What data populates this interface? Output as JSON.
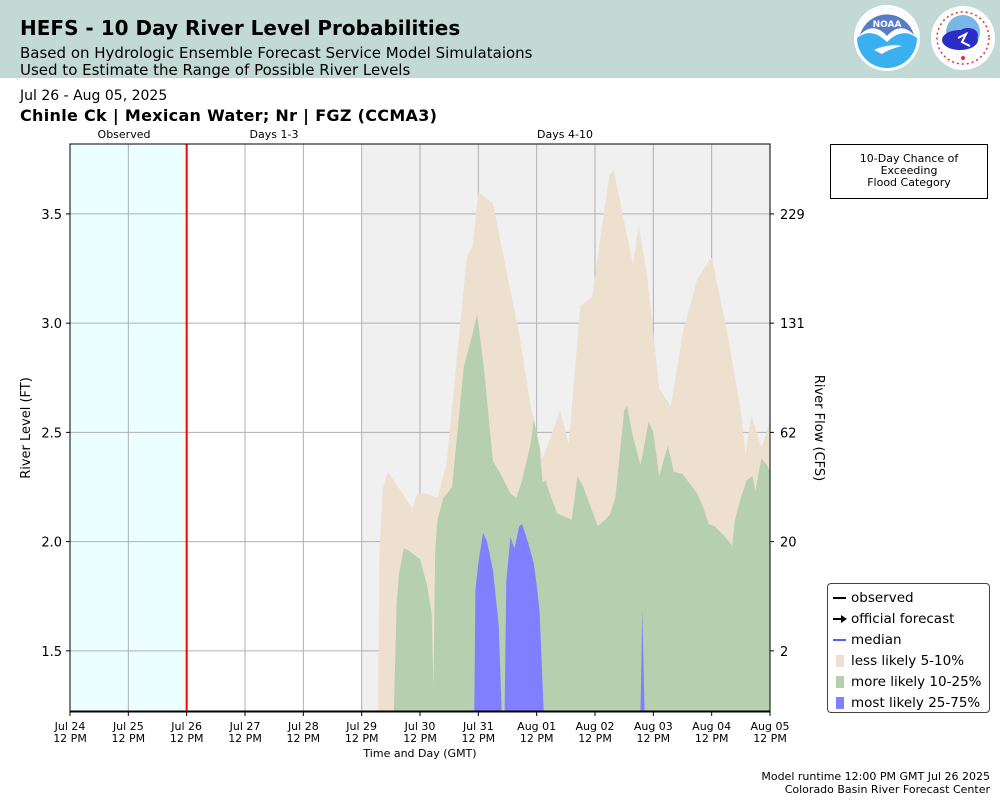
{
  "header": {
    "title": "HEFS - 10 Day River Level Probabilities",
    "subtitle1": "Based on Hydrologic Ensemble Forecast Service Model Simulataions",
    "subtitle2": "Used to Estimate the Range of Possible River Levels",
    "bg_color": "#c3d9d6",
    "logos": [
      "noaa-logo",
      "national-weather-service-logo"
    ]
  },
  "date_range": "Jul 26 - Aug 05, 2025",
  "station": "Chinle Ck | Mexican Water; Nr | FGZ (CCMA3)",
  "periods": [
    "Observed",
    "Days 1-3",
    "Days 4-10"
  ],
  "flood_box": {
    "lines": [
      "10-Day Chance of",
      "Exceeding",
      "Flood Category"
    ]
  },
  "legend": [
    {
      "label": "observed",
      "color": "#000000",
      "kind": "line"
    },
    {
      "label": "official forecast",
      "color": "#000000",
      "kind": "arrow-line"
    },
    {
      "label": "median",
      "color": "#5a5aff",
      "kind": "line"
    },
    {
      "label": "less likely 5-10%",
      "color": "#ede0cf",
      "kind": "patch"
    },
    {
      "label": "more likely 10-25%",
      "color": "#b5cfaf",
      "kind": "patch"
    },
    {
      "label": "most likely 25-75%",
      "color": "#8080ff",
      "kind": "patch"
    }
  ],
  "footer": {
    "runtime": "Model runtime 12:00 PM GMT Jul 26 2025",
    "center": "Colorado Basin River Forecast Center"
  },
  "chart_data": {
    "type": "area",
    "xlabel": "Time and Day (GMT)",
    "ylabel": "River Level (FT)",
    "y2label": "River Flow (CFS)",
    "x_unit": "days since Jul 24 12 PM",
    "xlim": [
      0,
      12
    ],
    "ylim": [
      1.22,
      3.82
    ],
    "x_ticks": [
      {
        "d": "Jul 24",
        "t": "12 PM"
      },
      {
        "d": "Jul 25",
        "t": "12 PM"
      },
      {
        "d": "Jul 26",
        "t": "12 PM"
      },
      {
        "d": "Jul 27",
        "t": "12 PM"
      },
      {
        "d": "Jul 28",
        "t": "12 PM"
      },
      {
        "d": "Jul 29",
        "t": "12 PM"
      },
      {
        "d": "Jul 30",
        "t": "12 PM"
      },
      {
        "d": "Jul 31",
        "t": "12 PM"
      },
      {
        "d": "Aug 01",
        "t": "12 PM"
      },
      {
        "d": "Aug 02",
        "t": "12 PM"
      },
      {
        "d": "Aug 03",
        "t": "12 PM"
      },
      {
        "d": "Aug 04",
        "t": "12 PM"
      },
      {
        "d": "Aug 05",
        "t": "12 PM"
      }
    ],
    "y_ticks": [
      {
        "ft": 1.5,
        "label": "1.5",
        "cfs": "2"
      },
      {
        "ft": 2.0,
        "label": "2.0",
        "cfs": "20"
      },
      {
        "ft": 2.5,
        "label": "2.5",
        "cfs": "62"
      },
      {
        "ft": 3.0,
        "label": "3.0",
        "cfs": "131"
      },
      {
        "ft": 3.5,
        "label": "3.5",
        "cfs": "229"
      }
    ],
    "observed_end": 2.0,
    "days13_end": 5.0,
    "baseline": 1.22,
    "series": [
      {
        "name": "less likely 5-10%",
        "color": "#ede0cf",
        "points": [
          [
            5.28,
            1.22
          ],
          [
            5.3,
            1.92
          ],
          [
            5.36,
            2.24
          ],
          [
            5.45,
            2.32
          ],
          [
            5.6,
            2.26
          ],
          [
            5.8,
            2.18
          ],
          [
            5.87,
            2.15
          ],
          [
            5.95,
            2.22
          ],
          [
            6.1,
            2.22
          ],
          [
            6.3,
            2.2
          ],
          [
            6.45,
            2.35
          ],
          [
            6.6,
            2.75
          ],
          [
            6.8,
            3.3
          ],
          [
            6.9,
            3.35
          ],
          [
            7.0,
            3.6
          ],
          [
            7.25,
            3.55
          ],
          [
            7.45,
            3.28
          ],
          [
            7.7,
            2.95
          ],
          [
            7.9,
            2.62
          ],
          [
            8.1,
            2.38
          ],
          [
            8.2,
            2.45
          ],
          [
            8.4,
            2.6
          ],
          [
            8.55,
            2.45
          ],
          [
            8.75,
            3.08
          ],
          [
            8.95,
            3.12
          ],
          [
            9.15,
            3.5
          ],
          [
            9.25,
            3.68
          ],
          [
            9.32,
            3.7
          ],
          [
            9.55,
            3.4
          ],
          [
            9.65,
            3.27
          ],
          [
            9.75,
            3.45
          ],
          [
            9.9,
            3.2
          ],
          [
            10.1,
            2.7
          ],
          [
            10.3,
            2.62
          ],
          [
            10.5,
            2.95
          ],
          [
            10.75,
            3.2
          ],
          [
            11.0,
            3.3
          ],
          [
            11.25,
            2.98
          ],
          [
            11.5,
            2.6
          ],
          [
            11.58,
            2.4
          ],
          [
            11.68,
            2.58
          ],
          [
            11.85,
            2.43
          ],
          [
            12.0,
            2.55
          ],
          [
            12.0,
            1.22
          ]
        ]
      },
      {
        "name": "more likely 10-25%",
        "color": "#b5cfaf",
        "points": [
          [
            5.55,
            1.22
          ],
          [
            5.6,
            1.72
          ],
          [
            5.64,
            1.85
          ],
          [
            5.72,
            1.97
          ],
          [
            5.8,
            1.96
          ],
          [
            6.0,
            1.92
          ],
          [
            6.12,
            1.8
          ],
          [
            6.2,
            1.67
          ],
          [
            6.23,
            1.33
          ],
          [
            6.26,
            1.96
          ],
          [
            6.3,
            2.1
          ],
          [
            6.4,
            2.2
          ],
          [
            6.55,
            2.25
          ],
          [
            6.75,
            2.8
          ],
          [
            6.9,
            2.95
          ],
          [
            6.98,
            3.04
          ],
          [
            7.1,
            2.78
          ],
          [
            7.25,
            2.37
          ],
          [
            7.4,
            2.3
          ],
          [
            7.55,
            2.22
          ],
          [
            7.65,
            2.2
          ],
          [
            7.75,
            2.28
          ],
          [
            7.9,
            2.45
          ],
          [
            7.95,
            2.56
          ],
          [
            8.05,
            2.43
          ],
          [
            8.1,
            2.27
          ],
          [
            8.15,
            2.28
          ],
          [
            8.25,
            2.2
          ],
          [
            8.35,
            2.13
          ],
          [
            8.6,
            2.1
          ],
          [
            8.7,
            2.3
          ],
          [
            8.8,
            2.25
          ],
          [
            9.05,
            2.07
          ],
          [
            9.25,
            2.12
          ],
          [
            9.35,
            2.2
          ],
          [
            9.5,
            2.6
          ],
          [
            9.55,
            2.62
          ],
          [
            9.65,
            2.48
          ],
          [
            9.78,
            2.35
          ],
          [
            9.92,
            2.55
          ],
          [
            10.0,
            2.5
          ],
          [
            10.1,
            2.3
          ],
          [
            10.25,
            2.44
          ],
          [
            10.35,
            2.32
          ],
          [
            10.5,
            2.31
          ],
          [
            10.75,
            2.22
          ],
          [
            10.85,
            2.16
          ],
          [
            10.95,
            2.08
          ],
          [
            11.05,
            2.07
          ],
          [
            11.2,
            2.03
          ],
          [
            11.3,
            2.0
          ],
          [
            11.35,
            1.98
          ],
          [
            11.4,
            2.1
          ],
          [
            11.5,
            2.2
          ],
          [
            11.6,
            2.28
          ],
          [
            11.7,
            2.3
          ],
          [
            11.75,
            2.23
          ],
          [
            11.85,
            2.38
          ],
          [
            11.95,
            2.35
          ],
          [
            12.0,
            2.32
          ],
          [
            12.0,
            1.22
          ]
        ]
      },
      {
        "name": "most likely 25-75%",
        "color": "#8080ff",
        "points": [
          [
            6.93,
            1.22
          ],
          [
            6.95,
            1.78
          ],
          [
            7.0,
            1.9
          ],
          [
            7.08,
            2.04
          ],
          [
            7.15,
            2.0
          ],
          [
            7.25,
            1.87
          ],
          [
            7.35,
            1.62
          ],
          [
            7.4,
            1.22
          ],
          [
            7.45,
            1.22
          ],
          [
            7.48,
            1.82
          ],
          [
            7.55,
            2.02
          ],
          [
            7.62,
            1.97
          ],
          [
            7.7,
            2.07
          ],
          [
            7.75,
            2.08
          ],
          [
            7.85,
            2.0
          ],
          [
            7.95,
            1.9
          ],
          [
            8.0,
            1.8
          ],
          [
            8.05,
            1.68
          ],
          [
            8.12,
            1.22
          ],
          [
            10.0,
            1.22
          ]
        ]
      },
      {
        "name": "most likely spike",
        "color": "#8080ff",
        "points": [
          [
            9.78,
            1.22
          ],
          [
            9.81,
            1.69
          ],
          [
            9.85,
            1.22
          ]
        ]
      }
    ],
    "median": {
      "y": 1.222,
      "color": "#5a5aff"
    }
  }
}
